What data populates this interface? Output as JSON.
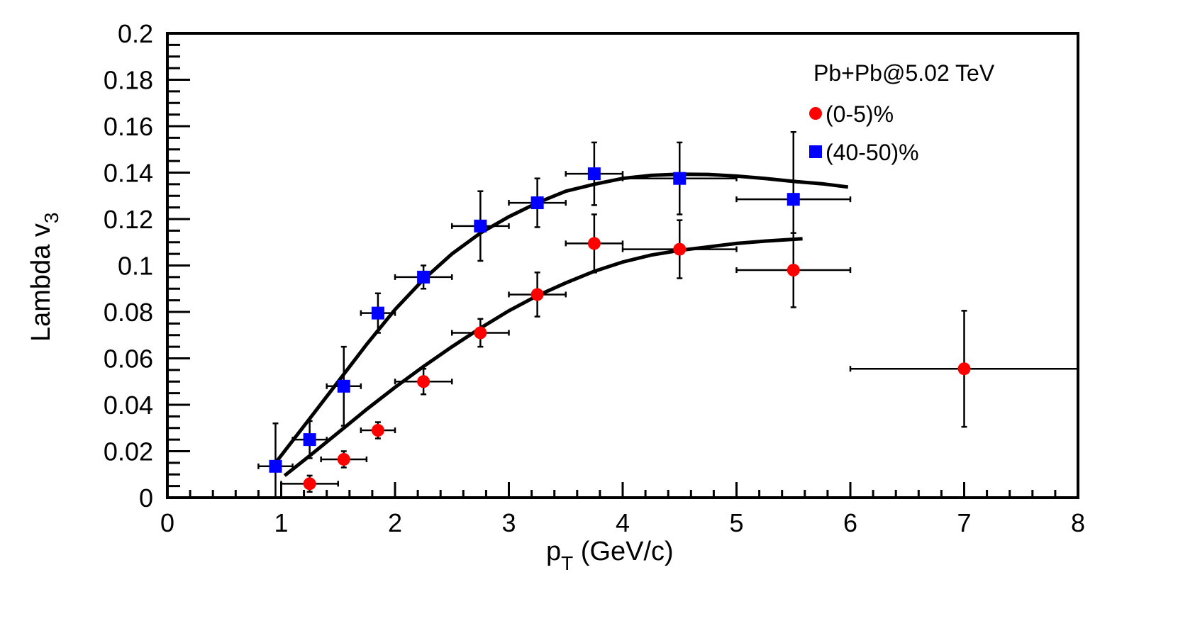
{
  "chart_data": {
    "type": "scatter",
    "title": "",
    "xlabel": "p_T (GeV/c)",
    "xlabel_main": "p",
    "xlabel_sub": "T",
    "xlabel_rest": " (GeV/c)",
    "ylabel": "Lambda v_3",
    "ylabel_main": "Lambda v",
    "ylabel_sub": "3",
    "xlim": [
      0,
      8
    ],
    "ylim": [
      0,
      0.2
    ],
    "grid": false,
    "x_ticks": [
      0,
      1,
      2,
      3,
      4,
      5,
      6,
      7,
      8
    ],
    "x_tick_labels": [
      "0",
      "1",
      "2",
      "3",
      "4",
      "5",
      "6",
      "7",
      "8"
    ],
    "y_ticks": [
      0,
      0.02,
      0.04,
      0.06,
      0.08,
      0.1,
      0.12,
      0.14,
      0.16,
      0.18,
      0.2
    ],
    "y_tick_labels": [
      "0",
      "0.02",
      "0.04",
      "0.06",
      "0.08",
      "0.1",
      "0.12",
      "0.14",
      "0.16",
      "0.18",
      "0.2"
    ],
    "legend": {
      "placement": "top-right",
      "header": "Pb+Pb@5.02 TeV",
      "entries": [
        {
          "label": "(0-5)%",
          "marker": "circle",
          "color": "#ff0000"
        },
        {
          "label": "(40-50)%",
          "marker": "square",
          "color": "#0000ff"
        }
      ]
    },
    "series": [
      {
        "name": "(0-5)%",
        "marker": "circle",
        "color": "#ff0000",
        "points": [
          {
            "x": 1.25,
            "y": 0.006,
            "xerr": 0.25,
            "yerr": 0.0035
          },
          {
            "x": 1.55,
            "y": 0.0165,
            "xerr": 0.2,
            "yerr": 0.0035
          },
          {
            "x": 1.85,
            "y": 0.029,
            "xerr": 0.15,
            "yerr": 0.0035
          },
          {
            "x": 2.25,
            "y": 0.05,
            "xerr": 0.25,
            "yerr": 0.0055
          },
          {
            "x": 2.75,
            "y": 0.071,
            "xerr": 0.25,
            "yerr": 0.006
          },
          {
            "x": 3.25,
            "y": 0.0875,
            "xerr": 0.25,
            "yerr": 0.0095
          },
          {
            "x": 3.75,
            "y": 0.1095,
            "xerr": 0.25,
            "yerr": 0.0125
          },
          {
            "x": 4.5,
            "y": 0.107,
            "xerr": 0.5,
            "yerr": 0.0125
          },
          {
            "x": 5.5,
            "y": 0.098,
            "xerr": 0.5,
            "yerr": 0.016
          },
          {
            "x": 7.0,
            "y": 0.0555,
            "xerr": 1.0,
            "yerr": 0.025
          }
        ]
      },
      {
        "name": "(40-50)%",
        "marker": "square",
        "color": "#0000ff",
        "points": [
          {
            "x": 0.95,
            "y": 0.0135,
            "xerr": 0.15,
            "yerr": 0.0185
          },
          {
            "x": 1.25,
            "y": 0.025,
            "xerr": 0.15,
            "yerr": 0.008
          },
          {
            "x": 1.55,
            "y": 0.048,
            "xerr": 0.15,
            "yerr": 0.017
          },
          {
            "x": 1.85,
            "y": 0.0795,
            "xerr": 0.15,
            "yerr": 0.0085
          },
          {
            "x": 2.25,
            "y": 0.095,
            "xerr": 0.25,
            "yerr": 0.005
          },
          {
            "x": 2.75,
            "y": 0.117,
            "xerr": 0.25,
            "yerr": 0.015
          },
          {
            "x": 3.25,
            "y": 0.127,
            "xerr": 0.25,
            "yerr": 0.0105
          },
          {
            "x": 3.75,
            "y": 0.1395,
            "xerr": 0.25,
            "yerr": 0.0135
          },
          {
            "x": 4.5,
            "y": 0.1375,
            "xerr": 0.5,
            "yerr": 0.0155
          },
          {
            "x": 5.5,
            "y": 0.1285,
            "xerr": 0.5,
            "yerr": 0.029
          }
        ]
      }
    ],
    "fits": [
      {
        "name": "fit-40-50",
        "color": "#000000",
        "points": [
          [
            0.95,
            0.015
          ],
          [
            1.25,
            0.034
          ],
          [
            1.5,
            0.05
          ],
          [
            1.75,
            0.066
          ],
          [
            2.0,
            0.081
          ],
          [
            2.25,
            0.094
          ],
          [
            2.5,
            0.105
          ],
          [
            2.75,
            0.114
          ],
          [
            3.0,
            0.121
          ],
          [
            3.25,
            0.127
          ],
          [
            3.5,
            0.132
          ],
          [
            3.75,
            0.135
          ],
          [
            4.0,
            0.1375
          ],
          [
            4.25,
            0.1388
          ],
          [
            4.5,
            0.1393
          ],
          [
            4.75,
            0.1392
          ],
          [
            5.0,
            0.1385
          ],
          [
            5.25,
            0.1375
          ],
          [
            5.5,
            0.1362
          ],
          [
            5.75,
            0.1352
          ],
          [
            5.98,
            0.1338
          ]
        ]
      },
      {
        "name": "fit-0-5",
        "color": "#000000",
        "points": [
          [
            1.03,
            0.0095
          ],
          [
            1.25,
            0.018
          ],
          [
            1.5,
            0.028
          ],
          [
            1.75,
            0.038
          ],
          [
            2.0,
            0.0475
          ],
          [
            2.25,
            0.0565
          ],
          [
            2.5,
            0.065
          ],
          [
            2.75,
            0.073
          ],
          [
            3.0,
            0.0805
          ],
          [
            3.25,
            0.087
          ],
          [
            3.5,
            0.0925
          ],
          [
            3.75,
            0.0975
          ],
          [
            4.0,
            0.1015
          ],
          [
            4.25,
            0.1045
          ],
          [
            4.5,
            0.1065
          ],
          [
            4.75,
            0.108
          ],
          [
            5.0,
            0.1095
          ],
          [
            5.25,
            0.1105
          ],
          [
            5.58,
            0.1115
          ]
        ]
      }
    ]
  }
}
